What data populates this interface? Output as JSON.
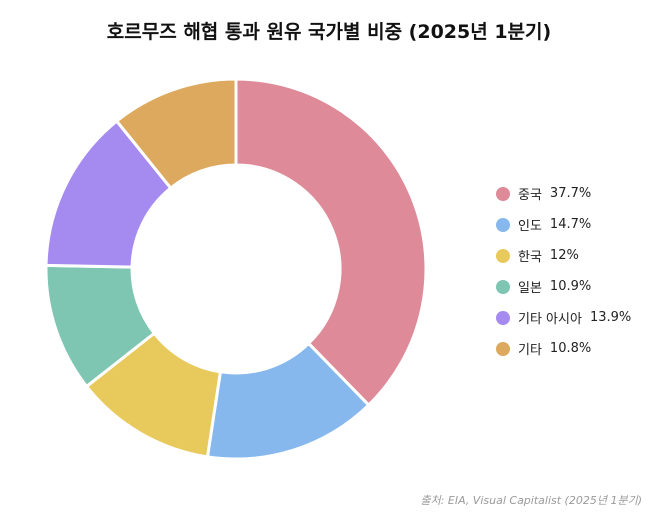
{
  "chart_data": {
    "type": "pie",
    "title": "호르무즈 해협 통과 원유 국가별 비중 (2025년 1분기)",
    "unit": "%",
    "slices": [
      {
        "label": "중국",
        "value": 37.7,
        "value_label": "37.7%",
        "color": "#de8a98"
      },
      {
        "label": "인도",
        "value": 14.7,
        "value_label": "14.7%",
        "color": "#86b8ee"
      },
      {
        "label": "한국",
        "value": 12,
        "value_label": "12%",
        "color": "#e8c95c"
      },
      {
        "label": "일본",
        "value": 10.9,
        "value_label": "10.9%",
        "color": "#7ec5b2"
      },
      {
        "label": "기타 아시아",
        "value": 13.9,
        "value_label": "13.9%",
        "color": "#a58bf0"
      },
      {
        "label": "기타",
        "value": 10.8,
        "value_label": "10.8%",
        "color": "#dca95e"
      }
    ],
    "donut": true,
    "legend_position": "right"
  },
  "source": "출처: EIA, Visual Capitalist (2025년 1분기)"
}
